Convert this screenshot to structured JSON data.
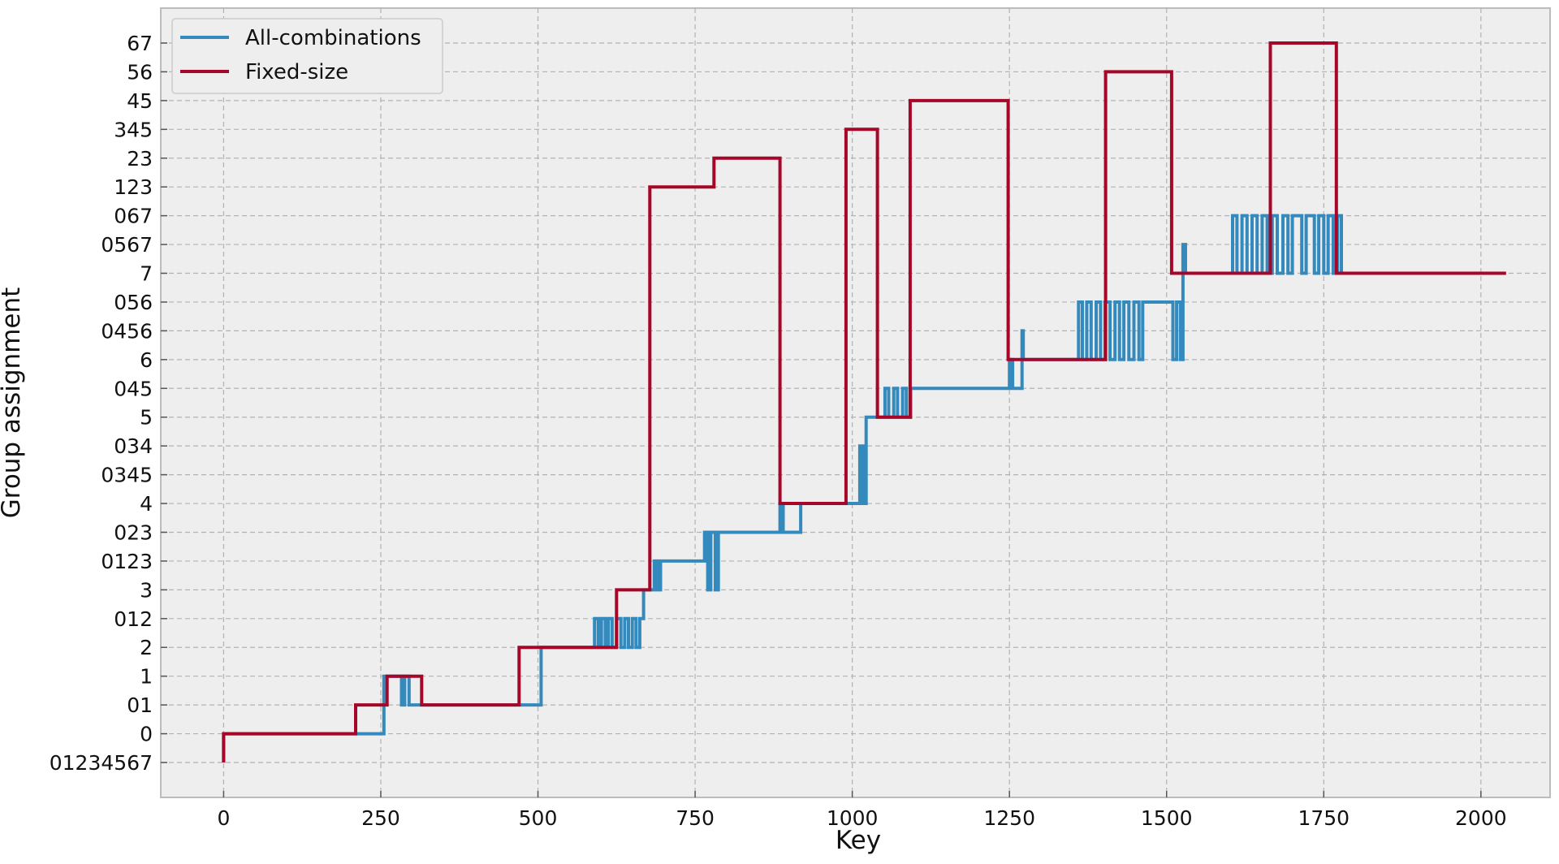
{
  "chart_data": {
    "type": "line",
    "title": "",
    "xlabel": "Key",
    "ylabel": "Group assignment",
    "xlim": [
      -100,
      2110
    ],
    "xticks": [
      0,
      250,
      500,
      750,
      1000,
      1250,
      1500,
      1750,
      2000
    ],
    "xtick_labels": [
      "0",
      "250",
      "500",
      "750",
      "1000",
      "1250",
      "1500",
      "1750",
      "2000"
    ],
    "y_categories": [
      "01234567",
      "0",
      "01",
      "1",
      "2",
      "012",
      "3",
      "0123",
      "023",
      "4",
      "0345",
      "034",
      "5",
      "045",
      "6",
      "0456",
      "056",
      "7",
      "0567",
      "067",
      "123",
      "23",
      "345",
      "45",
      "56",
      "67"
    ],
    "grid": true,
    "legend_position": "top-left",
    "colors": {
      "background": "#eeeeee",
      "all_combinations": "#348abd",
      "fixed_size": "#a60628",
      "grid": "#b2b2b2",
      "frame": "#bcbcbc"
    },
    "series": [
      {
        "name": "All-combinations",
        "points": [
          [
            0,
            "01234567"
          ],
          [
            0,
            "0"
          ],
          [
            255,
            "0"
          ],
          [
            255,
            "1"
          ],
          [
            283,
            "1"
          ],
          [
            283,
            "01"
          ],
          [
            288,
            "01"
          ],
          [
            288,
            "1"
          ],
          [
            295,
            "1"
          ],
          [
            295,
            "01"
          ],
          [
            505,
            "01"
          ],
          [
            505,
            "2"
          ],
          [
            590,
            "2"
          ],
          [
            590,
            "012"
          ],
          [
            596,
            "012"
          ],
          [
            596,
            "2"
          ],
          [
            601,
            "2"
          ],
          [
            601,
            "012"
          ],
          [
            607,
            "012"
          ],
          [
            607,
            "2"
          ],
          [
            612,
            "2"
          ],
          [
            612,
            "012"
          ],
          [
            618,
            "012"
          ],
          [
            618,
            "2"
          ],
          [
            625,
            "2"
          ],
          [
            625,
            "012"
          ],
          [
            632,
            "012"
          ],
          [
            632,
            "2"
          ],
          [
            638,
            "2"
          ],
          [
            638,
            "012"
          ],
          [
            644,
            "012"
          ],
          [
            644,
            "2"
          ],
          [
            650,
            "2"
          ],
          [
            650,
            "012"
          ],
          [
            656,
            "012"
          ],
          [
            656,
            "2"
          ],
          [
            662,
            "2"
          ],
          [
            662,
            "012"
          ],
          [
            668,
            "012"
          ],
          [
            668,
            "3"
          ],
          [
            685,
            "3"
          ],
          [
            685,
            "0123"
          ],
          [
            690,
            "0123"
          ],
          [
            690,
            "3"
          ],
          [
            695,
            "3"
          ],
          [
            695,
            "0123"
          ],
          [
            765,
            "0123"
          ],
          [
            765,
            "023"
          ],
          [
            770,
            "023"
          ],
          [
            770,
            "3"
          ],
          [
            775,
            "3"
          ],
          [
            775,
            "023"
          ],
          [
            782,
            "023"
          ],
          [
            782,
            "3"
          ],
          [
            787,
            "3"
          ],
          [
            787,
            "023"
          ],
          [
            885,
            "023"
          ],
          [
            885,
            "4"
          ],
          [
            890,
            "4"
          ],
          [
            890,
            "023"
          ],
          [
            918,
            "023"
          ],
          [
            918,
            "4"
          ],
          [
            1012,
            "4"
          ],
          [
            1012,
            "034"
          ],
          [
            1017,
            "034"
          ],
          [
            1017,
            "4"
          ],
          [
            1022,
            "4"
          ],
          [
            1022,
            "5"
          ],
          [
            1052,
            "5"
          ],
          [
            1052,
            "045"
          ],
          [
            1058,
            "045"
          ],
          [
            1058,
            "5"
          ],
          [
            1066,
            "5"
          ],
          [
            1066,
            "045"
          ],
          [
            1072,
            "045"
          ],
          [
            1072,
            "5"
          ],
          [
            1080,
            "5"
          ],
          [
            1080,
            "045"
          ],
          [
            1086,
            "045"
          ],
          [
            1086,
            "5"
          ],
          [
            1093,
            "5"
          ],
          [
            1093,
            "045"
          ],
          [
            1250,
            "045"
          ],
          [
            1250,
            "6"
          ],
          [
            1255,
            "6"
          ],
          [
            1255,
            "045"
          ],
          [
            1270,
            "045"
          ],
          [
            1270,
            "0456"
          ],
          [
            1272,
            "0456"
          ],
          [
            1272,
            "6"
          ],
          [
            1360,
            "6"
          ],
          [
            1360,
            "056"
          ],
          [
            1366,
            "056"
          ],
          [
            1366,
            "6"
          ],
          [
            1373,
            "6"
          ],
          [
            1373,
            "056"
          ],
          [
            1380,
            "056"
          ],
          [
            1380,
            "6"
          ],
          [
            1388,
            "6"
          ],
          [
            1388,
            "056"
          ],
          [
            1395,
            "056"
          ],
          [
            1395,
            "6"
          ],
          [
            1402,
            "6"
          ],
          [
            1402,
            "056"
          ],
          [
            1410,
            "056"
          ],
          [
            1410,
            "6"
          ],
          [
            1418,
            "6"
          ],
          [
            1418,
            "056"
          ],
          [
            1425,
            "056"
          ],
          [
            1425,
            "6"
          ],
          [
            1432,
            "6"
          ],
          [
            1432,
            "056"
          ],
          [
            1440,
            "056"
          ],
          [
            1440,
            "6"
          ],
          [
            1448,
            "6"
          ],
          [
            1448,
            "056"
          ],
          [
            1456,
            "056"
          ],
          [
            1456,
            "6"
          ],
          [
            1462,
            "6"
          ],
          [
            1462,
            "056"
          ],
          [
            1510,
            "056"
          ],
          [
            1510,
            "6"
          ],
          [
            1516,
            "6"
          ],
          [
            1516,
            "056"
          ],
          [
            1522,
            "056"
          ],
          [
            1522,
            "6"
          ],
          [
            1526,
            "6"
          ],
          [
            1526,
            "0567"
          ],
          [
            1530,
            "0567"
          ],
          [
            1530,
            "7"
          ],
          [
            1605,
            "7"
          ],
          [
            1605,
            "067"
          ],
          [
            1612,
            "067"
          ],
          [
            1612,
            "7"
          ],
          [
            1620,
            "7"
          ],
          [
            1620,
            "067"
          ],
          [
            1628,
            "067"
          ],
          [
            1628,
            "7"
          ],
          [
            1636,
            "7"
          ],
          [
            1636,
            "067"
          ],
          [
            1644,
            "067"
          ],
          [
            1644,
            "7"
          ],
          [
            1652,
            "7"
          ],
          [
            1652,
            "067"
          ],
          [
            1660,
            "067"
          ],
          [
            1660,
            "7"
          ],
          [
            1668,
            "7"
          ],
          [
            1668,
            "067"
          ],
          [
            1676,
            "067"
          ],
          [
            1676,
            "7"
          ],
          [
            1685,
            "7"
          ],
          [
            1685,
            "067"
          ],
          [
            1693,
            "067"
          ],
          [
            1693,
            "7"
          ],
          [
            1700,
            "7"
          ],
          [
            1700,
            "067"
          ],
          [
            1715,
            "067"
          ],
          [
            1715,
            "7"
          ],
          [
            1722,
            "7"
          ],
          [
            1722,
            "067"
          ],
          [
            1735,
            "067"
          ],
          [
            1735,
            "7"
          ],
          [
            1742,
            "7"
          ],
          [
            1742,
            "067"
          ],
          [
            1750,
            "067"
          ],
          [
            1750,
            "7"
          ],
          [
            1757,
            "7"
          ],
          [
            1757,
            "067"
          ],
          [
            1765,
            "067"
          ],
          [
            1765,
            "7"
          ],
          [
            1772,
            "7"
          ],
          [
            1772,
            "067"
          ],
          [
            1778,
            "067"
          ],
          [
            1778,
            "7"
          ],
          [
            1785,
            "7"
          ]
        ]
      },
      {
        "name": "Fixed-size",
        "points": [
          [
            0,
            "01234567"
          ],
          [
            0,
            "0"
          ],
          [
            210,
            "0"
          ],
          [
            210,
            "01"
          ],
          [
            260,
            "01"
          ],
          [
            260,
            "1"
          ],
          [
            315,
            "1"
          ],
          [
            315,
            "01"
          ],
          [
            470,
            "01"
          ],
          [
            470,
            "2"
          ],
          [
            625,
            "2"
          ],
          [
            625,
            "3"
          ],
          [
            678,
            "3"
          ],
          [
            678,
            "123"
          ],
          [
            780,
            "123"
          ],
          [
            780,
            "23"
          ],
          [
            885,
            "23"
          ],
          [
            885,
            "4"
          ],
          [
            990,
            "4"
          ],
          [
            990,
            "345"
          ],
          [
            1040,
            "345"
          ],
          [
            1040,
            "5"
          ],
          [
            1092,
            "5"
          ],
          [
            1092,
            "45"
          ],
          [
            1248,
            "45"
          ],
          [
            1248,
            "6"
          ],
          [
            1403,
            "6"
          ],
          [
            1403,
            "56"
          ],
          [
            1508,
            "56"
          ],
          [
            1508,
            "7"
          ],
          [
            1665,
            "7"
          ],
          [
            1665,
            "67"
          ],
          [
            1770,
            "67"
          ],
          [
            1770,
            "7"
          ],
          [
            2040,
            "7"
          ]
        ]
      }
    ]
  }
}
